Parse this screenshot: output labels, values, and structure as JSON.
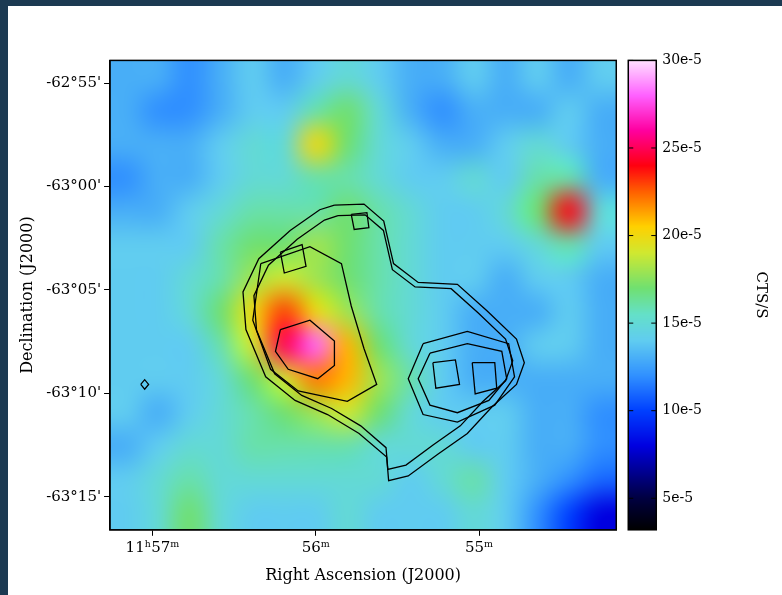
{
  "chart_data": {
    "type": "heatmap",
    "x_label": "Right Ascension (J2000)",
    "y_label": "Declination (J2000)",
    "xlim": [
      57.26,
      54.16
    ],
    "xticks": [
      {
        "value": 57,
        "label": "11ʰ57ᵐ"
      },
      {
        "value": 56,
        "label": "56ᵐ"
      },
      {
        "value": 55,
        "label": "55ᵐ"
      }
    ],
    "ylim": [
      -63.2767,
      -62.8983
    ],
    "yticks": [
      {
        "value": -63.25,
        "label": "-63°15'"
      },
      {
        "value": -63.1667,
        "label": "-63°10'"
      },
      {
        "value": -63.0833,
        "label": "-63°05'"
      },
      {
        "value": -63,
        "label": "-63°00'"
      },
      {
        "value": -62.9167,
        "label": "-62°55'"
      }
    ],
    "grid": false,
    "z": [
      [
        0.00013,
        0.00013,
        0.00012,
        0.00013,
        0.00014,
        0.00013,
        0.00014,
        0.00015,
        0.00014,
        0.00013,
        0.00013,
        0.00014,
        0.00013,
        0.00014,
        0.00013,
        0.00014
      ],
      [
        0.00013,
        0.00012,
        0.00012,
        0.00013,
        0.00014,
        0.00014,
        0.00016,
        0.00017,
        0.00015,
        0.00013,
        0.00012,
        0.00013,
        0.00013,
        0.00013,
        0.00014,
        0.00013
      ],
      [
        0.00013,
        0.00013,
        0.00013,
        0.00014,
        0.00015,
        0.00015,
        0.0002,
        0.00017,
        0.00015,
        0.00014,
        0.00013,
        0.00013,
        0.00014,
        0.00015,
        0.00014,
        0.00013
      ],
      [
        0.00012,
        0.00013,
        0.00013,
        0.00014,
        0.00015,
        0.00015,
        0.00016,
        0.00016,
        0.00015,
        0.00014,
        0.00014,
        0.00015,
        0.00014,
        0.00016,
        0.00016,
        0.00013
      ],
      [
        0.00013,
        0.00013,
        0.00014,
        0.00015,
        0.00016,
        0.00016,
        0.00016,
        0.00017,
        0.00016,
        0.00015,
        0.00014,
        0.00014,
        0.00015,
        0.00017,
        0.00024,
        0.00015
      ],
      [
        0.00014,
        0.00014,
        0.00014,
        0.00016,
        0.00017,
        0.00017,
        0.00018,
        0.00017,
        0.00016,
        0.00015,
        0.00014,
        0.00014,
        0.00014,
        0.00015,
        0.00016,
        0.00014
      ],
      [
        0.00014,
        0.00014,
        0.00015,
        0.00016,
        0.00018,
        0.00019,
        0.00018,
        0.00017,
        0.00016,
        0.00015,
        0.00014,
        0.00014,
        0.00013,
        0.00014,
        0.00014,
        0.00013
      ],
      [
        0.00014,
        0.00014,
        0.00015,
        0.00017,
        0.0002,
        0.00023,
        0.0002,
        0.00018,
        0.00016,
        0.00015,
        0.00014,
        0.00013,
        0.00013,
        0.00013,
        0.00014,
        0.00013
      ],
      [
        0.00014,
        0.00014,
        0.00014,
        0.00016,
        0.00019,
        0.00025,
        0.00028,
        0.00021,
        0.00017,
        0.00015,
        0.00014,
        0.00013,
        0.00013,
        0.00014,
        0.00014,
        0.00013
      ],
      [
        0.00014,
        0.00014,
        0.00014,
        0.00015,
        0.00017,
        0.00019,
        0.00022,
        0.00021,
        0.00018,
        0.00016,
        0.00014,
        0.00013,
        0.00013,
        0.00013,
        0.00013,
        0.00013
      ],
      [
        0.00014,
        0.00013,
        0.00014,
        0.00015,
        0.00016,
        0.00017,
        0.00018,
        0.00019,
        0.00017,
        0.00015,
        0.00014,
        0.00014,
        0.00014,
        0.00013,
        0.00013,
        0.00012
      ],
      [
        0.00013,
        0.00014,
        0.00015,
        0.00015,
        0.00016,
        0.00016,
        0.00016,
        0.00016,
        0.00015,
        0.00015,
        0.00015,
        0.00014,
        0.00014,
        0.00013,
        0.00013,
        0.00012
      ],
      [
        0.00014,
        0.00015,
        0.00016,
        0.00015,
        0.00015,
        0.00015,
        0.00015,
        0.00015,
        0.00015,
        0.00014,
        0.00015,
        0.00016,
        0.00014,
        0.00013,
        0.00012,
        0.00011
      ],
      [
        0.00014,
        0.00015,
        0.00017,
        0.00015,
        0.00014,
        0.00014,
        0.00014,
        0.00015,
        0.00014,
        0.00014,
        0.00014,
        0.00015,
        0.00014,
        0.00012,
        0.0001,
        8e-05
      ]
    ],
    "colorbar": {
      "label": "CTS/S",
      "range": [
        3.2e-05,
        0.0003
      ],
      "ticks": [
        {
          "value": 5e-05,
          "label": "5e-5"
        },
        {
          "value": 0.0001,
          "label": "10e-5"
        },
        {
          "value": 0.00015,
          "label": "15e-5"
        },
        {
          "value": 0.0002,
          "label": "20e-5"
        },
        {
          "value": 0.00025,
          "label": "25e-5"
        },
        {
          "value": 0.0003,
          "label": "30e-5"
        }
      ]
    },
    "series": [
      {
        "type": "line",
        "color": "#000000",
        "x": [
          55.886,
          55.705,
          55.584,
          55.524,
          55.373,
          55.133,
          54.952,
          54.771,
          54.723,
          54.771,
          54.922,
          55.072,
          55.253,
          55.434,
          55.554,
          55.566,
          55.735,
          55.928,
          56.127,
          56.307,
          56.428,
          56.446,
          56.349,
          56.157,
          55.976,
          55.886
        ],
        "y": [
          -63.0149,
          -63.0141,
          -63.0278,
          -63.0621,
          -63.0773,
          -63.0788,
          -63.1001,
          -63.1229,
          -63.142,
          -63.1595,
          -63.1777,
          -63.199,
          -63.2158,
          -63.2333,
          -63.2371,
          -63.2181,
          -63.199,
          -63.1838,
          -63.1724,
          -63.1534,
          -63.1153,
          -63.0849,
          -63.0582,
          -63.0354,
          -63.0187,
          -63.0149
        ]
      },
      {
        "type": "line",
        "color": "#000000",
        "x": [
          55.864,
          55.698,
          55.586,
          55.531,
          55.392,
          55.171,
          55.005,
          54.838,
          54.794,
          54.838,
          54.977,
          55.115,
          55.282,
          55.448,
          55.559,
          55.57,
          55.725,
          55.903,
          56.086,
          56.252,
          56.363,
          56.379,
          56.29,
          56.114,
          55.947,
          55.864
        ],
        "y": [
          -63.0235,
          -63.0228,
          -63.0354,
          -63.067,
          -63.0809,
          -63.0823,
          -63.1019,
          -63.1229,
          -63.1405,
          -63.1566,
          -63.1733,
          -63.1929,
          -63.2084,
          -63.2245,
          -63.228,
          -63.2105,
          -63.1929,
          -63.1789,
          -63.1684,
          -63.151,
          -63.1159,
          -63.0879,
          -63.0634,
          -63.0424,
          -63.027,
          -63.0235
        ]
      },
      {
        "type": "line",
        "color": "#000000",
        "x": [
          56.337,
          56.036,
          55.843,
          55.783,
          55.705,
          55.627,
          55.807,
          56.108,
          56.277,
          56.386,
          56.337
        ],
        "y": [
          -63.0621,
          -63.0484,
          -63.0621,
          -63.0963,
          -63.1305,
          -63.1595,
          -63.1732,
          -63.1648,
          -63.1473,
          -63.1077,
          -63.0621
        ]
      },
      {
        "type": "line",
        "color": "#000000",
        "x": [
          56.217,
          56.036,
          55.886,
          55.886,
          55.988,
          56.169,
          56.247,
          56.217
        ],
        "y": [
          -63.1153,
          -63.1077,
          -63.1245,
          -63.1442,
          -63.1549,
          -63.1473,
          -63.1328,
          -63.1153
        ]
      },
      {
        "type": "line",
        "color": "#000000",
        "x": [
          56.217,
          56.084,
          56.06,
          56.193,
          56.217
        ],
        "y": [
          -63.0529,
          -63.0468,
          -63.0643,
          -63.0697,
          -63.0529
        ]
      },
      {
        "type": "line",
        "color": "#000000",
        "x": [
          55.343,
          55.072,
          54.819,
          54.783,
          54.904,
          55.133,
          55.343,
          55.434,
          55.343
        ],
        "y": [
          -63.1267,
          -63.1168,
          -63.1267,
          -63.1534,
          -63.1762,
          -63.1899,
          -63.1838,
          -63.1549,
          -63.1267
        ]
      },
      {
        "type": "line",
        "color": "#000000",
        "x": [
          55.301,
          55.072,
          54.861,
          54.831,
          54.94,
          55.133,
          55.301,
          55.373,
          55.301
        ],
        "y": [
          -63.1343,
          -63.1267,
          -63.1328,
          -63.1549,
          -63.1724,
          -63.1823,
          -63.1762,
          -63.1549,
          -63.1343
        ]
      },
      {
        "type": "line",
        "color": "#000000",
        "x": [
          55.283,
          55.145,
          55.12,
          55.265,
          55.283
        ],
        "y": [
          -63.142,
          -63.1397,
          -63.1595,
          -63.1625,
          -63.142
        ]
      },
      {
        "type": "line",
        "color": "#000000",
        "x": [
          55.042,
          54.904,
          54.892,
          55.024,
          55.042
        ],
        "y": [
          -63.142,
          -63.142,
          -63.1625,
          -63.1671,
          -63.142
        ]
      },
      {
        "type": "line",
        "color": "#000000",
        "x": [
          55.783,
          55.687,
          55.675,
          55.765,
          55.783
        ],
        "y": [
          -63.0225,
          -63.021,
          -63.0331,
          -63.0346,
          -63.0225
        ]
      },
      {
        "type": "line",
        "color": "#000000",
        "x": [
          57.072,
          57.048,
          57.024,
          57.048,
          57.072
        ],
        "y": [
          -63.1595,
          -63.1557,
          -63.1595,
          -63.1633,
          -63.1595
        ]
      }
    ]
  }
}
